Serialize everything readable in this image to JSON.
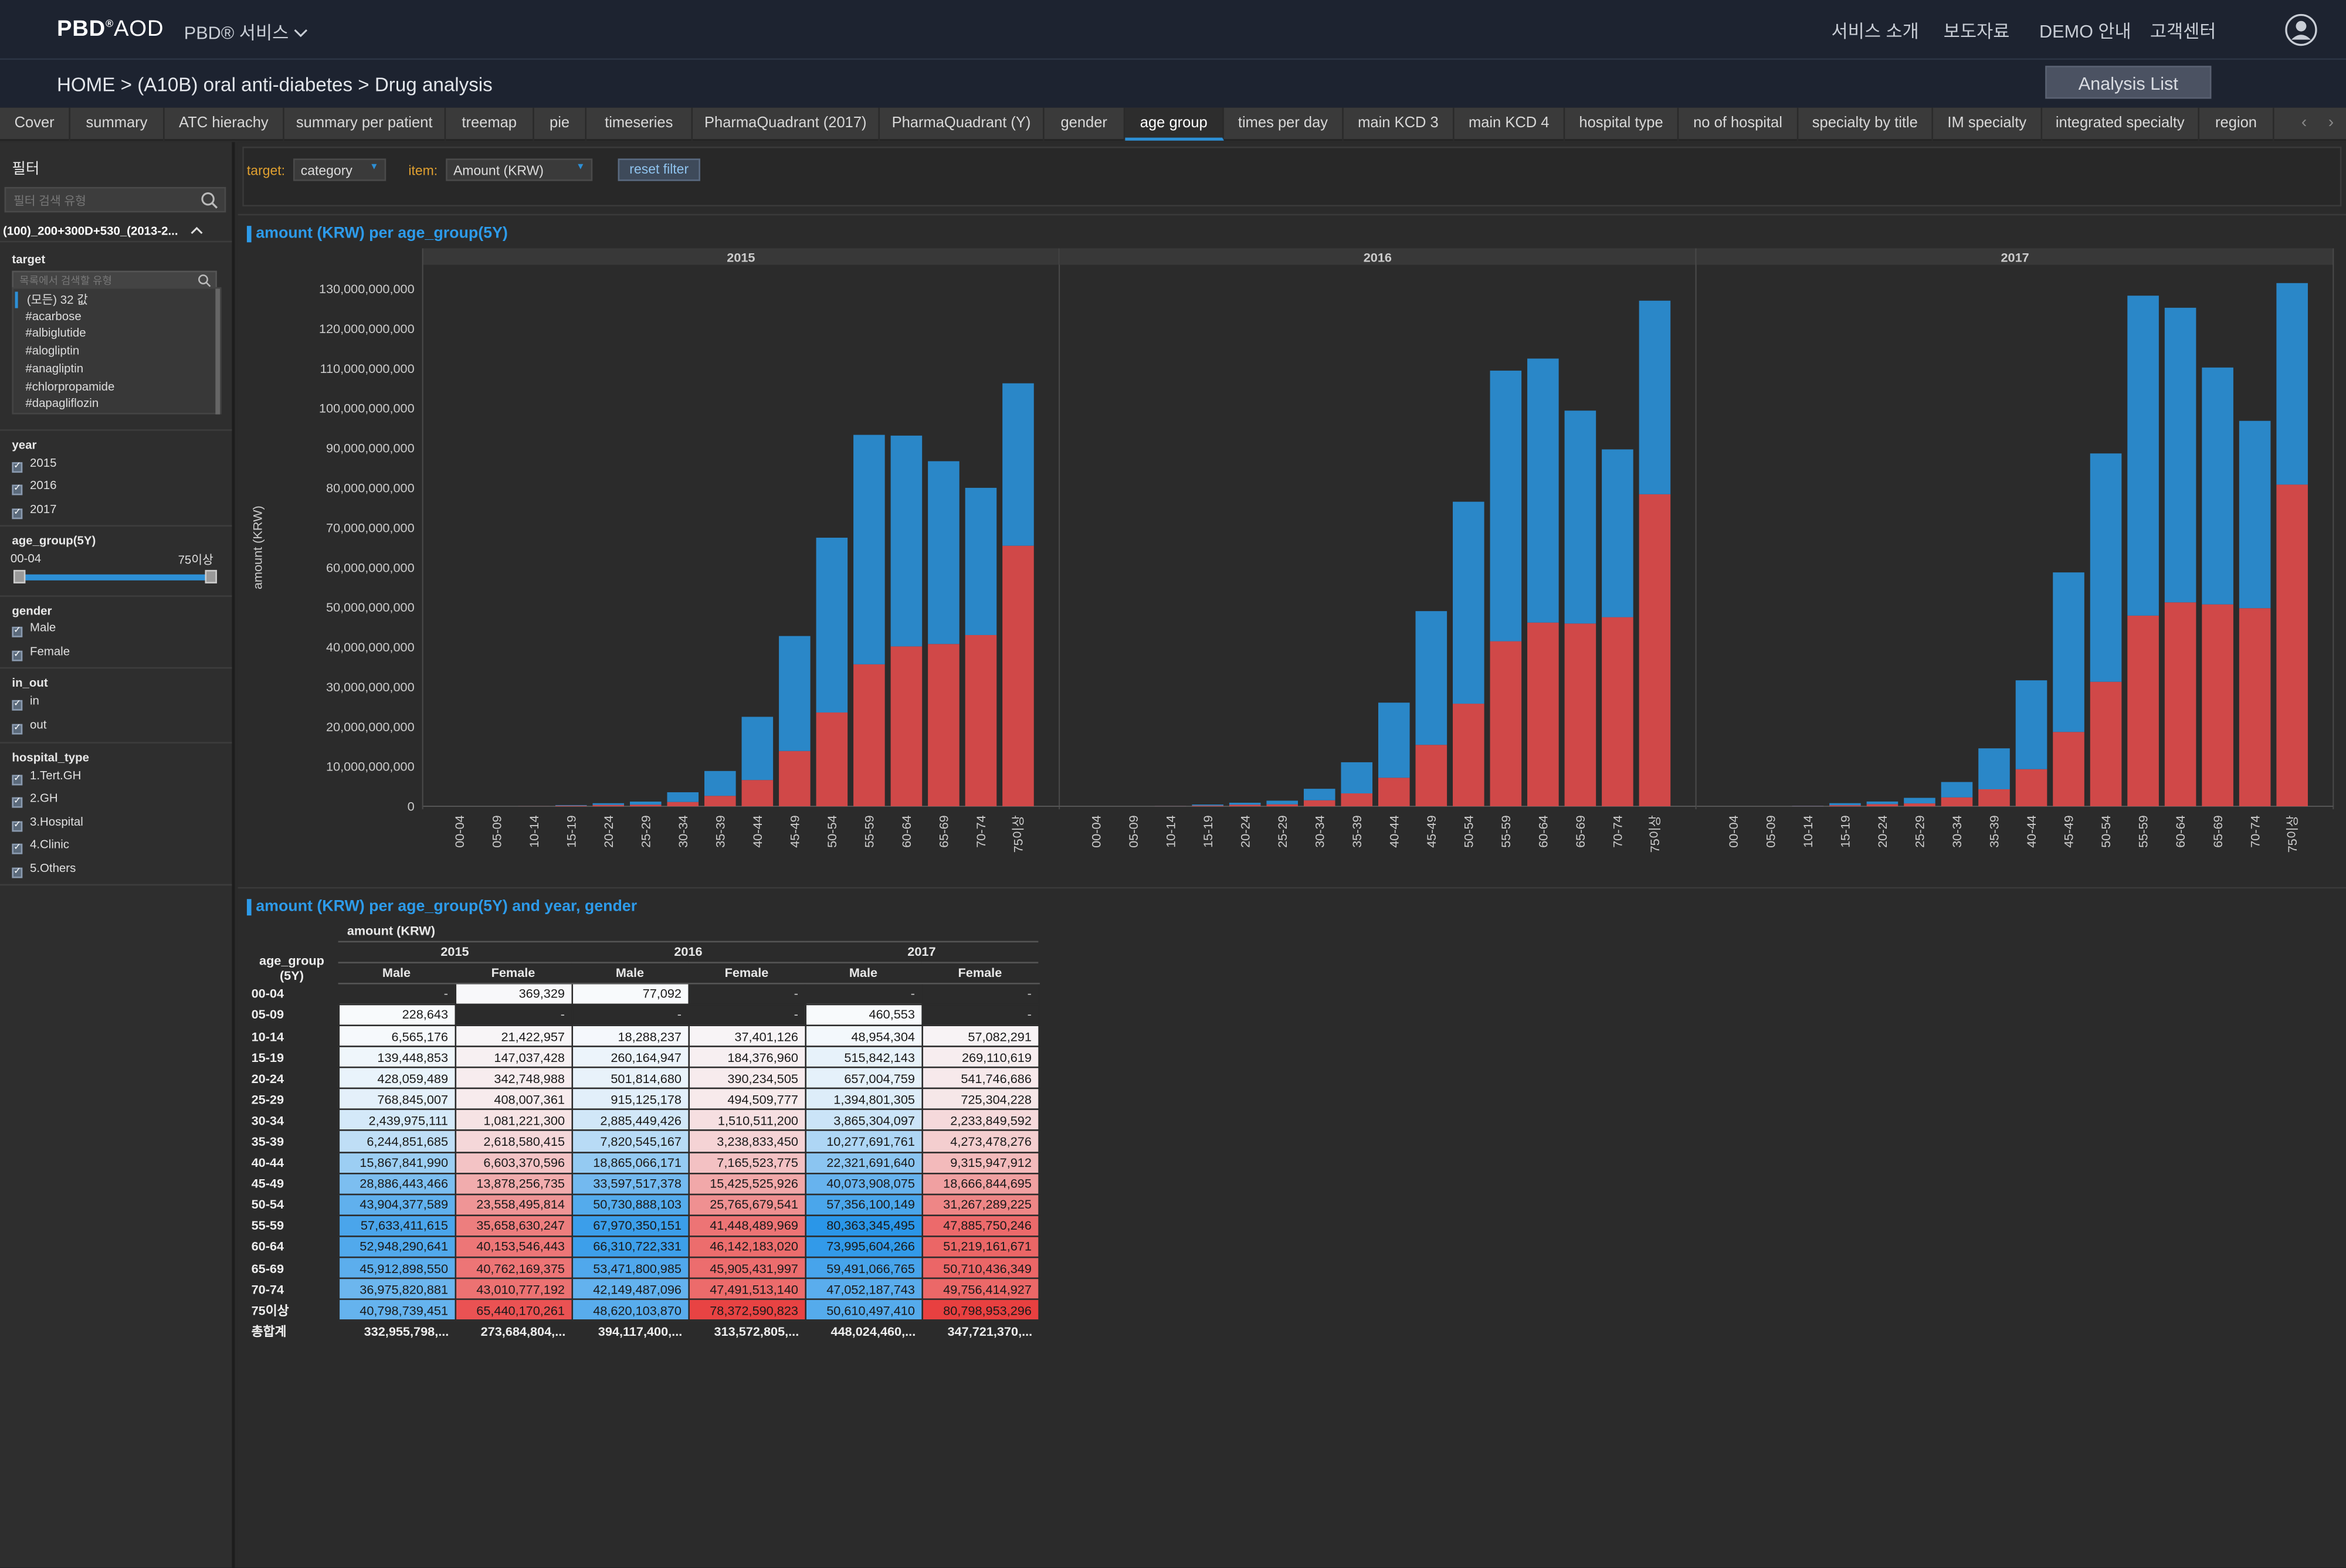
{
  "header": {
    "logo": "PBD",
    "logo_sup": "®",
    "logo2": "AOD",
    "service": "PBD® 서비스",
    "nav": [
      "서비스 소개",
      "보도자료",
      "DEMO 안내",
      "고객센터"
    ]
  },
  "breadcrumb": "HOME >  (A10B) oral anti-diabetes > Drug analysis",
  "analysis_list": "Analysis List",
  "tabs": [
    "Cover",
    "summary",
    "ATC hierachy",
    "summary per patient",
    "treemap",
    "pie",
    "timeseries",
    "PharmaQuadrant (2017)",
    "PharmaQuadrant (Y)",
    "gender",
    "age group",
    "times per day",
    "main KCD 3",
    "main KCD 4",
    "hospital type",
    "no of hospital",
    "specialty by title",
    "IM specialty",
    "integrated specialty",
    "region"
  ],
  "active_tab": "age group",
  "sidebar": {
    "title": "필터",
    "search_placeholder": "필터 검색 유형",
    "sheet": "(100)_200+300D+530_(2013-2...",
    "target": {
      "label": "target",
      "search_placeholder": "목록에서 검색할 유형",
      "items": [
        "(모든) 32 값",
        "#acarbose",
        "#albiglutide",
        "#alogliptin",
        "#anagliptin",
        "#chlorpropamide",
        "#dapagliflozin"
      ]
    },
    "year": {
      "label": "year",
      "items": [
        "2015",
        "2016",
        "2017"
      ]
    },
    "age_group": {
      "label": "age_group(5Y)",
      "min": "00-04",
      "max": "75이상"
    },
    "gender": {
      "label": "gender",
      "items": [
        "Male",
        "Female"
      ]
    },
    "in_out": {
      "label": "in_out",
      "items": [
        "in",
        "out"
      ]
    },
    "hospital_type": {
      "label": "hospital_type",
      "items": [
        "1.Tert.GH",
        "2.GH",
        "3.Hospital",
        "4.Clinic",
        "5.Others"
      ]
    }
  },
  "filters": {
    "target_label": "target:",
    "target_value": "category",
    "item_label": "item:",
    "item_value": "Amount (KRW)",
    "reset": "reset filter"
  },
  "chart_title": "amount (KRW) per age_group(5Y)",
  "table_title": "amount (KRW) per age_group(5Y) and year, gender",
  "colors": {
    "male": "#2a87c8",
    "female": "#d04848",
    "accent": "#2d9bea"
  },
  "chart_data": {
    "type": "bar",
    "stacked": true,
    "panels": [
      "2015",
      "2016",
      "2017"
    ],
    "categories": [
      "00-04",
      "05-09",
      "10-14",
      "15-19",
      "20-24",
      "25-29",
      "30-34",
      "35-39",
      "40-44",
      "45-49",
      "50-54",
      "55-59",
      "60-64",
      "65-69",
      "70-74",
      "75이상"
    ],
    "ylabel": "amount (KRW)",
    "ylim": [
      0,
      130000000000
    ],
    "yticks": [
      "0",
      "10,000,000,000",
      "20,000,000,000",
      "30,000,000,000",
      "40,000,000,000",
      "50,000,000,000",
      "60,000,000,000",
      "70,000,000,000",
      "80,000,000,000",
      "90,000,000,000",
      "100,000,000,000",
      "110,000,000,000",
      "120,000,000,000",
      "130,000,000,000"
    ],
    "series": [
      {
        "name": "Male",
        "color": "#2a87c8",
        "values": {
          "2015": [
            0,
            228643,
            6565176,
            139448853,
            428059489,
            768845007,
            2439975111,
            6244851685,
            15867841990,
            28886443466,
            43904377589,
            57633411615,
            52948290641,
            45912898550,
            36975820881,
            40798739451
          ],
          "2016": [
            77092,
            0,
            18288237,
            260164947,
            501814680,
            915125178,
            2885449426,
            7820545167,
            18865066171,
            33597517378,
            50730888103,
            67970350151,
            66310722331,
            53471800985,
            42149487096,
            48620103870
          ],
          "2017": [
            0,
            460553,
            48954304,
            515842143,
            657004759,
            1394801305,
            3865304097,
            10277691761,
            22321691640,
            40073908075,
            57356100149,
            80363345495,
            73995604266,
            59491066765,
            47052187743,
            50610497410
          ]
        }
      },
      {
        "name": "Female",
        "color": "#d04848",
        "values": {
          "2015": [
            369329,
            0,
            21422957,
            147037428,
            342748988,
            408007361,
            1081221300,
            2618580415,
            6603370596,
            13878256735,
            23558495814,
            35658630247,
            40153546443,
            40762169375,
            43010777192,
            65440170261
          ],
          "2016": [
            0,
            0,
            37401126,
            184376960,
            390234505,
            494509777,
            1510511200,
            3238833450,
            7165523775,
            15425525926,
            25765679541,
            41448489969,
            46142183020,
            45905431997,
            47491513140,
            78372590823
          ],
          "2017": [
            0,
            0,
            57082291,
            269110619,
            541746686,
            725304228,
            2233849592,
            4273478276,
            9315947912,
            18666844695,
            31267289225,
            47885750246,
            51219161671,
            50710436349,
            49756414927,
            80798953296
          ]
        }
      }
    ]
  },
  "table": {
    "corner": "age_group\n(5Y)",
    "measure": "amount (KRW)",
    "years": [
      "2015",
      "2016",
      "2017"
    ],
    "genders": [
      "Male",
      "Female"
    ],
    "rows": [
      [
        "00-04",
        "-",
        "369,329",
        "77,092",
        "-",
        "-",
        "-"
      ],
      [
        "05-09",
        "228,643",
        "-",
        "-",
        "-",
        "460,553",
        "-"
      ],
      [
        "10-14",
        "6,565,176",
        "21,422,957",
        "18,288,237",
        "37,401,126",
        "48,954,304",
        "57,082,291"
      ],
      [
        "15-19",
        "139,448,853",
        "147,037,428",
        "260,164,947",
        "184,376,960",
        "515,842,143",
        "269,110,619"
      ],
      [
        "20-24",
        "428,059,489",
        "342,748,988",
        "501,814,680",
        "390,234,505",
        "657,004,759",
        "541,746,686"
      ],
      [
        "25-29",
        "768,845,007",
        "408,007,361",
        "915,125,178",
        "494,509,777",
        "1,394,801,305",
        "725,304,228"
      ],
      [
        "30-34",
        "2,439,975,111",
        "1,081,221,300",
        "2,885,449,426",
        "1,510,511,200",
        "3,865,304,097",
        "2,233,849,592"
      ],
      [
        "35-39",
        "6,244,851,685",
        "2,618,580,415",
        "7,820,545,167",
        "3,238,833,450",
        "10,277,691,761",
        "4,273,478,276"
      ],
      [
        "40-44",
        "15,867,841,990",
        "6,603,370,596",
        "18,865,066,171",
        "7,165,523,775",
        "22,321,691,640",
        "9,315,947,912"
      ],
      [
        "45-49",
        "28,886,443,466",
        "13,878,256,735",
        "33,597,517,378",
        "15,425,525,926",
        "40,073,908,075",
        "18,666,844,695"
      ],
      [
        "50-54",
        "43,904,377,589",
        "23,558,495,814",
        "50,730,888,103",
        "25,765,679,541",
        "57,356,100,149",
        "31,267,289,225"
      ],
      [
        "55-59",
        "57,633,411,615",
        "35,658,630,247",
        "67,970,350,151",
        "41,448,489,969",
        "80,363,345,495",
        "47,885,750,246"
      ],
      [
        "60-64",
        "52,948,290,641",
        "40,153,546,443",
        "66,310,722,331",
        "46,142,183,020",
        "73,995,604,266",
        "51,219,161,671"
      ],
      [
        "65-69",
        "45,912,898,550",
        "40,762,169,375",
        "53,471,800,985",
        "45,905,431,997",
        "59,491,066,765",
        "50,710,436,349"
      ],
      [
        "70-74",
        "36,975,820,881",
        "43,010,777,192",
        "42,149,487,096",
        "47,491,513,140",
        "47,052,187,743",
        "49,756,414,927"
      ],
      [
        "75이상",
        "40,798,739,451",
        "65,440,170,261",
        "48,620,103,870",
        "78,372,590,823",
        "50,610,497,410",
        "80,798,953,296"
      ]
    ],
    "total": [
      "총합계",
      "332,955,798,...",
      "273,684,804,...",
      "394,117,400,...",
      "313,572,805,...",
      "448,024,460,...",
      "347,721,370,..."
    ]
  }
}
